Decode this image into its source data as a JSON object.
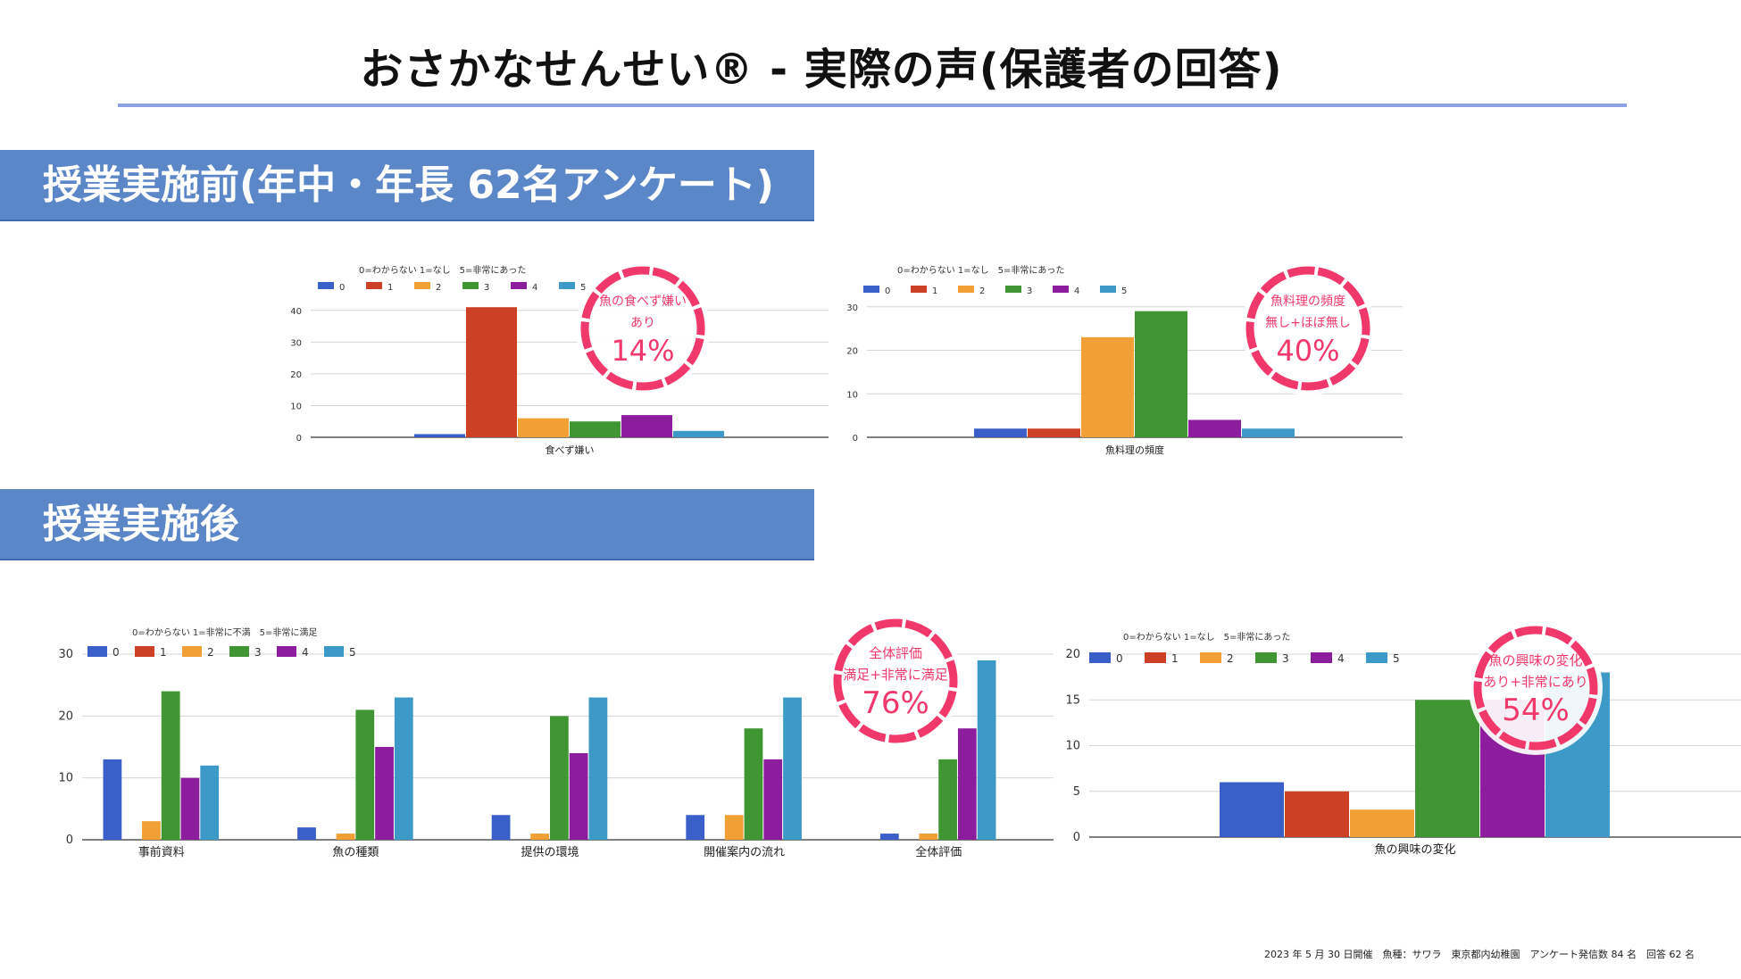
{
  "page_title": "おさかなせんせい® - 実際の声(保護者の回答)",
  "section_before": "授業実施前(年中・年長 62名アンケート)",
  "section_after": "授業実施後",
  "footnote": "2023 年 5 月 30 日開催　魚種：サワラ　東京都内幼稚園　アンケート発信数 84 名　回答 62 名",
  "colors": {
    "series": [
      "#3b5fc8",
      "#cc4125",
      "#f0a035",
      "#3f9632",
      "#8c1d9c",
      "#3d9ac8"
    ],
    "accent": "#f0386b",
    "banner": "#5b86c8",
    "rule": "#8ea2e6"
  },
  "chart_data": [
    {
      "id": "dislike",
      "type": "bar",
      "caption": "0=わからない 1=なし　5=非常にあった",
      "categories": [
        "食べず嫌い"
      ],
      "series": [
        {
          "name": "0",
          "values": [
            1
          ]
        },
        {
          "name": "1",
          "values": [
            41
          ]
        },
        {
          "name": "2",
          "values": [
            6
          ]
        },
        {
          "name": "3",
          "values": [
            5
          ]
        },
        {
          "name": "4",
          "values": [
            7
          ]
        },
        {
          "name": "5",
          "values": [
            2
          ]
        }
      ],
      "ylim": [
        0,
        45
      ],
      "yticks": [
        0,
        10,
        20,
        30,
        40
      ],
      "badge": {
        "line1": "魚の食べず嫌い",
        "line2": "あり",
        "value": "14%"
      }
    },
    {
      "id": "cooking",
      "type": "bar",
      "caption": "0=わからない 1=なし　5=非常にあった",
      "categories": [
        "魚料理の頻度"
      ],
      "series": [
        {
          "name": "0",
          "values": [
            2
          ]
        },
        {
          "name": "1",
          "values": [
            2
          ]
        },
        {
          "name": "2",
          "values": [
            23
          ]
        },
        {
          "name": "3",
          "values": [
            29
          ]
        },
        {
          "name": "4",
          "values": [
            4
          ]
        },
        {
          "name": "5",
          "values": [
            2
          ]
        }
      ],
      "ylim": [
        0,
        32
      ],
      "yticks": [
        0,
        10,
        20,
        30
      ],
      "badge": {
        "line1": "魚料理の頻度",
        "line2": "無し+ほぼ無し",
        "value": "40%"
      }
    },
    {
      "id": "evaluation",
      "type": "bar",
      "caption": "0=わからない 1=非常に不満　5=非常に満足",
      "categories": [
        "事前資料",
        "魚の種類",
        "提供の環境",
        "開催案内の流れ",
        "全体評価"
      ],
      "series": [
        {
          "name": "0",
          "values": [
            13,
            2,
            4,
            4,
            1
          ]
        },
        {
          "name": "1",
          "values": [
            0,
            0,
            0,
            0,
            0
          ]
        },
        {
          "name": "2",
          "values": [
            3,
            1,
            1,
            4,
            1
          ]
        },
        {
          "name": "3",
          "values": [
            24,
            21,
            20,
            18,
            13
          ]
        },
        {
          "name": "4",
          "values": [
            10,
            15,
            14,
            13,
            18
          ]
        },
        {
          "name": "5",
          "values": [
            12,
            23,
            23,
            23,
            29
          ]
        }
      ],
      "ylim": [
        0,
        30
      ],
      "yticks": [
        0,
        10,
        20,
        30
      ],
      "badge": {
        "line1": "全体評価",
        "line2": "満足+非常に満足",
        "value": "76%"
      }
    },
    {
      "id": "interest",
      "type": "bar",
      "caption": "0=わからない 1=なし　5=非常にあった",
      "categories": [
        "魚の興味の変化"
      ],
      "series": [
        {
          "name": "0",
          "values": [
            6
          ]
        },
        {
          "name": "1",
          "values": [
            5
          ]
        },
        {
          "name": "2",
          "values": [
            3
          ]
        },
        {
          "name": "3",
          "values": [
            15
          ]
        },
        {
          "name": "4",
          "values": [
            15
          ]
        },
        {
          "name": "5",
          "values": [
            18
          ]
        }
      ],
      "ylim": [
        0,
        20
      ],
      "yticks": [
        0,
        5,
        10,
        15,
        20
      ],
      "badge": {
        "line1": "魚の興味の変化",
        "line2": "あり+非常にあり",
        "value": "54%"
      }
    }
  ]
}
